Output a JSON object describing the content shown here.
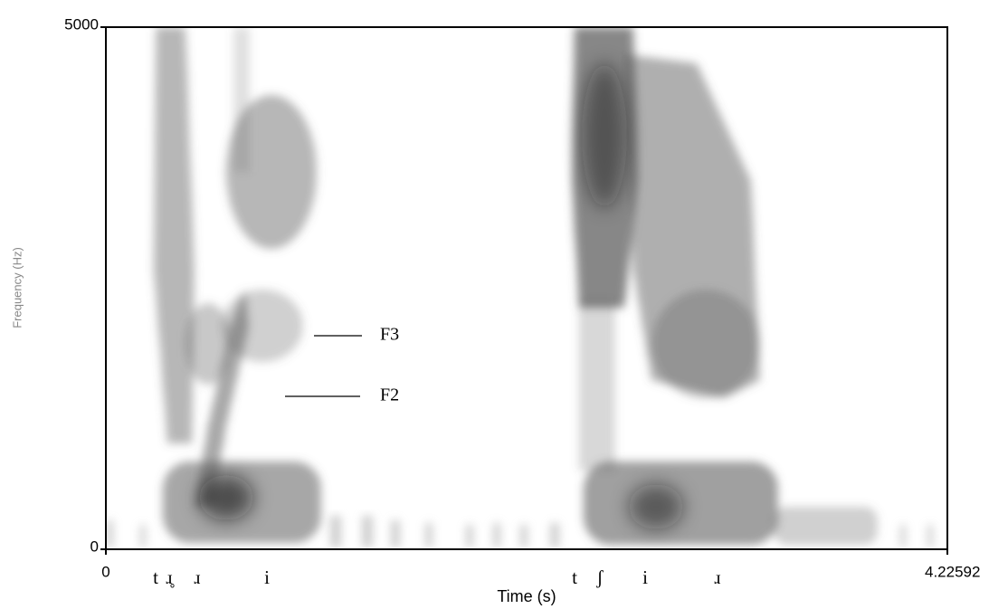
{
  "chart_data": {
    "type": "spectrogram",
    "xlabel": "Time (s)",
    "ylabel": "Frequency (Hz)",
    "xlim": [
      0,
      4.22592
    ],
    "xticks": [
      0,
      4.22592
    ],
    "ylim": [
      0,
      5000
    ],
    "yticks": [
      0,
      5000
    ],
    "annotations": [
      "F3",
      "F2"
    ],
    "segment_labels": [
      "t",
      "ɹ̥",
      "ɹ",
      "i",
      "t",
      "ʃ",
      "i",
      "ɹ"
    ]
  }
}
